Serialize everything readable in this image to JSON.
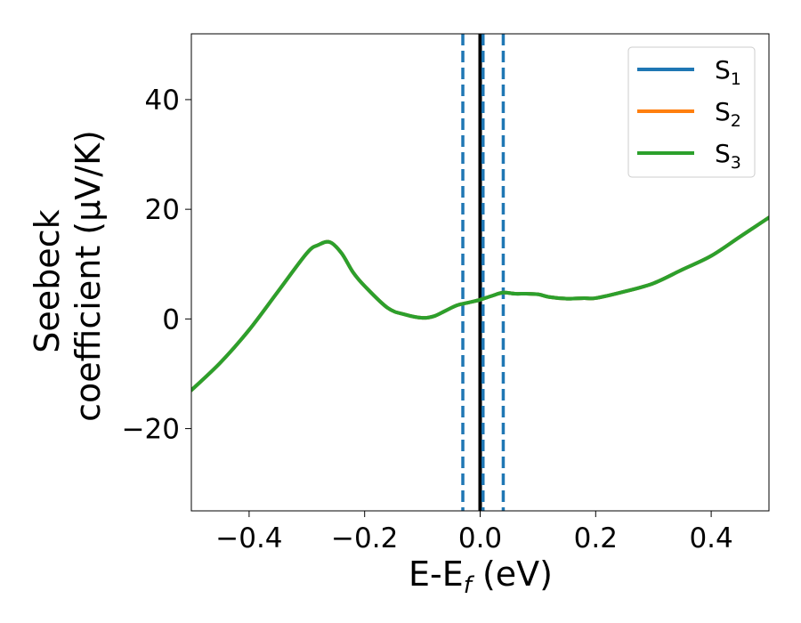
{
  "colors": {
    "s1": "#1f77b4",
    "s2": "#ff7f0e",
    "s3": "#2ca02c",
    "zero_line": "#000000",
    "dashed_lines": "#1f77b4"
  },
  "chart_data": {
    "type": "line",
    "xlabel": "E-E",
    "xlabel_sub": "f",
    "xlabel_suffix": " (eV)",
    "ylabel_line1": "Seebeck",
    "ylabel_line2": "coefficient  (μV/K)",
    "xlim": [
      -0.5,
      0.5
    ],
    "ylim": [
      -35,
      52
    ],
    "xticks": [
      -0.4,
      -0.2,
      0.0,
      0.2,
      0.4
    ],
    "xtick_labels": [
      "−0.4",
      "−0.2",
      "0.0",
      "0.2",
      "0.4"
    ],
    "yticks": [
      -20,
      0,
      20,
      40
    ],
    "ytick_labels": [
      "−20",
      "0",
      "20",
      "40"
    ],
    "grid": false,
    "legend_position": "top-right",
    "vertical_lines": [
      {
        "x": 0.0,
        "style": "solid",
        "color": "#000000"
      },
      {
        "x": -0.03,
        "style": "dashed",
        "color": "#1f77b4"
      },
      {
        "x": 0.005,
        "style": "dashed",
        "color": "#1f77b4"
      },
      {
        "x": 0.04,
        "style": "dashed",
        "color": "#1f77b4"
      }
    ],
    "series": [
      {
        "name": "S",
        "sub": "1",
        "color": "#1f77b4",
        "x": [
          -0.5,
          -0.45,
          -0.4,
          -0.35,
          -0.3,
          -0.28,
          -0.26,
          -0.24,
          -0.22,
          -0.2,
          -0.16,
          -0.13,
          -0.1,
          -0.08,
          -0.06,
          -0.04,
          -0.02,
          0.0,
          0.02,
          0.04,
          0.06,
          0.08,
          0.1,
          0.12,
          0.15,
          0.18,
          0.2,
          0.25,
          0.3,
          0.35,
          0.4,
          0.45,
          0.5
        ],
        "y": [
          -13,
          -8,
          -2,
          5,
          12,
          13.5,
          14,
          12,
          8.5,
          6,
          2,
          0.8,
          0.2,
          0.5,
          1.5,
          2.5,
          3,
          3.5,
          4.2,
          4.8,
          4.6,
          4.6,
          4.5,
          4,
          3.7,
          3.8,
          3.8,
          5,
          6.5,
          9,
          11.5,
          15,
          18.5
        ]
      },
      {
        "name": "S",
        "sub": "2",
        "color": "#ff7f0e",
        "x": [
          -0.5,
          -0.45,
          -0.4,
          -0.35,
          -0.3,
          -0.28,
          -0.26,
          -0.24,
          -0.22,
          -0.2,
          -0.16,
          -0.13,
          -0.1,
          -0.08,
          -0.06,
          -0.04,
          -0.02,
          0.0,
          0.02,
          0.04,
          0.06,
          0.08,
          0.1,
          0.12,
          0.15,
          0.18,
          0.2,
          0.25,
          0.3,
          0.35,
          0.4,
          0.45,
          0.5
        ],
        "y": [
          -13,
          -8,
          -2,
          5,
          12,
          13.5,
          14,
          12,
          8.5,
          6,
          2,
          0.8,
          0.2,
          0.5,
          1.5,
          2.5,
          3,
          3.5,
          4.2,
          4.8,
          4.6,
          4.6,
          4.5,
          4,
          3.7,
          3.8,
          3.8,
          5,
          6.5,
          9,
          11.5,
          15,
          18.5
        ]
      },
      {
        "name": "S",
        "sub": "3",
        "color": "#2ca02c",
        "x": [
          -0.5,
          -0.45,
          -0.4,
          -0.35,
          -0.3,
          -0.28,
          -0.26,
          -0.24,
          -0.22,
          -0.2,
          -0.16,
          -0.13,
          -0.1,
          -0.08,
          -0.06,
          -0.04,
          -0.02,
          0.0,
          0.02,
          0.04,
          0.06,
          0.08,
          0.1,
          0.12,
          0.15,
          0.18,
          0.2,
          0.25,
          0.3,
          0.35,
          0.4,
          0.45,
          0.5
        ],
        "y": [
          -13,
          -8,
          -2,
          5,
          12,
          13.5,
          14,
          12,
          8.5,
          6,
          2,
          0.8,
          0.2,
          0.5,
          1.5,
          2.5,
          3,
          3.5,
          4.2,
          4.8,
          4.6,
          4.6,
          4.5,
          4,
          3.7,
          3.8,
          3.8,
          5,
          6.5,
          9,
          11.5,
          15,
          18.5
        ]
      }
    ]
  }
}
